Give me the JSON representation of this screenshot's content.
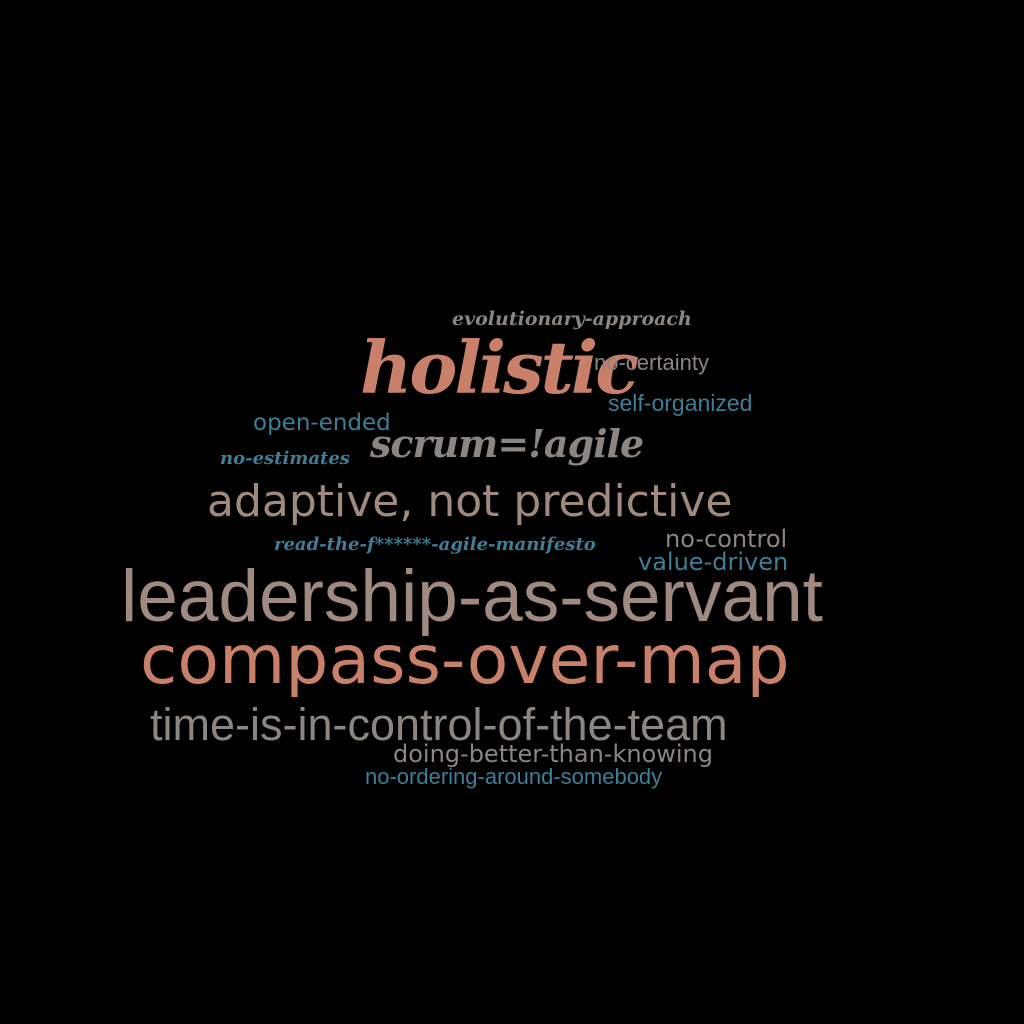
{
  "palette": {
    "background": "#000000",
    "salmon": "#c9806a",
    "taupe": "#a08a80",
    "gray": "#8c8580",
    "teal": "#3f7e96"
  },
  "words": {
    "evolutionary": "evolutionary-approach",
    "holistic": "holistic",
    "no_certainty": "no-certainty",
    "self_organized": "self-organized",
    "open_ended": "open-ended",
    "scrum": "scrum=!agile",
    "no_estimates": "no-estimates",
    "adaptive": "adaptive, not predictive",
    "read_the": "read-the-f******-agile-manifesto",
    "no_control": "no-control",
    "value_driven": "value-driven",
    "leadership": "leadership-as-servant",
    "compass": "compass-over-map",
    "time_is": "time-is-in-control-of-the-team",
    "doing_better": "doing-better-than-knowing",
    "no_ordering": "no-ordering-around-somebody"
  }
}
